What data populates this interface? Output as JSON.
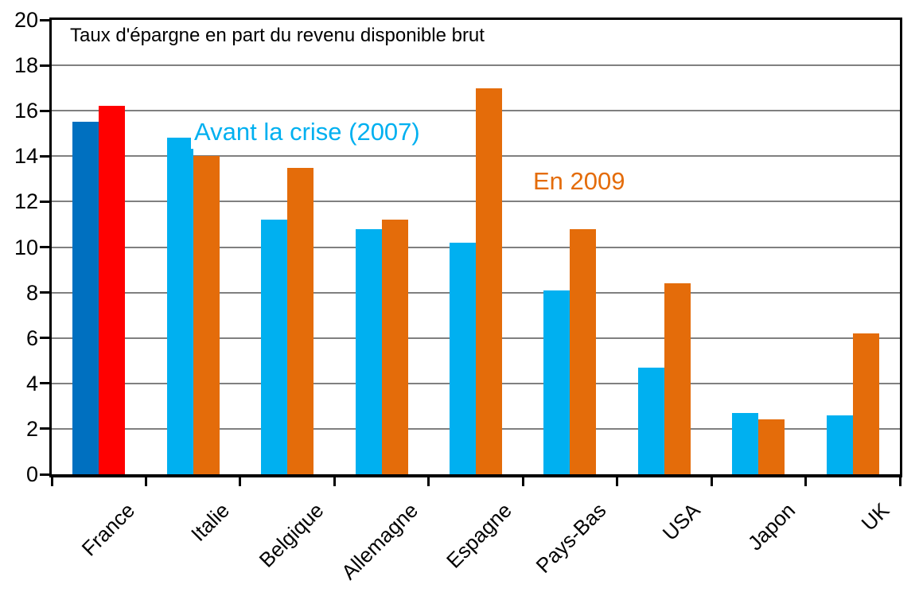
{
  "chart_data": {
    "type": "bar",
    "title": "Taux d'épargne en part du revenu disponible brut",
    "categories": [
      "France",
      "Italie",
      "Belgique",
      "Allemagne",
      "Espagne",
      "Pays-Bas",
      "USA",
      "Japon",
      "UK"
    ],
    "series": [
      {
        "name": "Avant la crise (2007)",
        "values": [
          15.5,
          14.8,
          11.2,
          10.8,
          10.2,
          8.1,
          4.7,
          2.7,
          2.6
        ],
        "color": "#00B0F0",
        "highlight_color": "#0070C0"
      },
      {
        "name": "En 2009",
        "values": [
          16.2,
          14.0,
          13.5,
          11.2,
          17.0,
          10.8,
          8.4,
          2.4,
          6.2
        ],
        "color": "#E46C0A",
        "highlight_color": "#FF0000"
      }
    ],
    "highlight_category": "France",
    "ylabel": "",
    "xlabel": "",
    "ylim": [
      0,
      20
    ],
    "ytick_step": 2,
    "grid": true,
    "legend_position": "inside-plot-text-labels",
    "colors": {
      "gridline": "#808080",
      "axis": "#000000",
      "background": "#FFFFFF",
      "text": "#000000"
    }
  }
}
